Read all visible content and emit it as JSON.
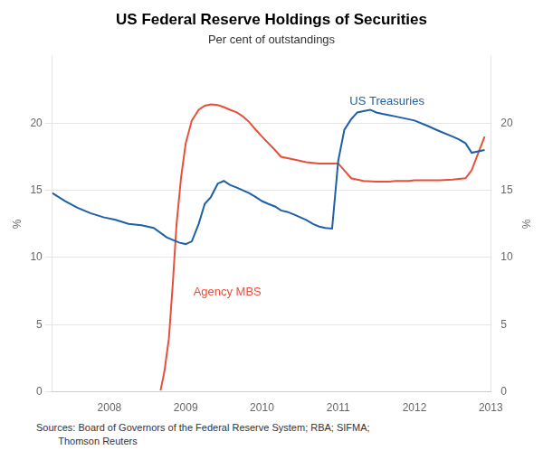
{
  "chart_data": {
    "type": "line",
    "title": "US Federal Reserve Holdings of Securities",
    "subtitle": "Per cent of outstandings",
    "ylabel": "%",
    "y2label": "%",
    "source": "Sources: Board of Governors of the Federal Reserve System; RBA; SIFMA;\n        Thomson Reuters",
    "xlim": [
      2007.25,
      2013.0
    ],
    "xticks": [
      2008,
      2009,
      2010,
      2011,
      2012,
      2013
    ],
    "ylim": [
      0,
      25
    ],
    "yticks": [
      0,
      5,
      10,
      15,
      20
    ],
    "y2lim": [
      0,
      25
    ],
    "y2ticks": [
      0,
      5,
      10,
      15,
      20
    ],
    "grid": "y",
    "series": [
      {
        "name": "US Treasuries",
        "color": "#1f5fa6",
        "x": [
          2007.25,
          2007.42,
          2007.58,
          2007.75,
          2007.92,
          2008.08,
          2008.25,
          2008.42,
          2008.58,
          2008.75,
          2008.92,
          2009.0,
          2009.08,
          2009.17,
          2009.25,
          2009.33,
          2009.42,
          2009.5,
          2009.58,
          2009.67,
          2009.75,
          2009.83,
          2009.92,
          2010.0,
          2010.08,
          2010.17,
          2010.25,
          2010.33,
          2010.42,
          2010.5,
          2010.58,
          2010.67,
          2010.75,
          2010.83,
          2010.92,
          2011.0,
          2011.08,
          2011.17,
          2011.25,
          2011.33,
          2011.42,
          2011.5,
          2011.58,
          2011.67,
          2011.75,
          2011.92,
          2012.0,
          2012.17,
          2012.33,
          2012.5,
          2012.58,
          2012.67,
          2012.75,
          2012.92
        ],
        "values": [
          14.8,
          14.2,
          13.7,
          13.3,
          13.0,
          12.8,
          12.5,
          12.4,
          12.2,
          11.5,
          11.1,
          11.0,
          11.2,
          12.5,
          14.0,
          14.5,
          15.5,
          15.7,
          15.4,
          15.2,
          15.0,
          14.8,
          14.5,
          14.2,
          14.0,
          13.8,
          13.5,
          13.4,
          13.2,
          13.0,
          12.8,
          12.5,
          12.3,
          12.2,
          12.15,
          17.2,
          19.5,
          20.3,
          20.8,
          20.9,
          21.0,
          20.8,
          20.7,
          20.6,
          20.5,
          20.3,
          20.2,
          19.8,
          19.4,
          19.0,
          18.8,
          18.5,
          17.8,
          18.0
        ]
      },
      {
        "name": "Agency MBS",
        "color": "#e8503a",
        "x": [
          2008.67,
          2008.72,
          2008.78,
          2008.83,
          2008.88,
          2008.94,
          2009.0,
          2009.08,
          2009.17,
          2009.25,
          2009.33,
          2009.42,
          2009.5,
          2009.58,
          2009.67,
          2009.75,
          2009.83,
          2009.92,
          2010.0,
          2010.17,
          2010.25,
          2010.42,
          2010.58,
          2010.75,
          2010.92,
          2011.0,
          2011.17,
          2011.33,
          2011.5,
          2011.67,
          2011.75,
          2011.92,
          2012.0,
          2012.17,
          2012.33,
          2012.5,
          2012.58,
          2012.67,
          2012.75,
          2012.92
        ],
        "values": [
          0.1,
          1.5,
          4.0,
          8.0,
          12.5,
          16.0,
          18.5,
          20.2,
          21.0,
          21.3,
          21.4,
          21.35,
          21.2,
          21.0,
          20.8,
          20.5,
          20.1,
          19.5,
          19.0,
          18.0,
          17.5,
          17.3,
          17.1,
          17.0,
          17.0,
          17.0,
          15.9,
          15.7,
          15.65,
          15.65,
          15.7,
          15.7,
          15.75,
          15.75,
          15.75,
          15.8,
          15.85,
          15.9,
          16.5,
          19.0
        ]
      }
    ],
    "annotations": [
      {
        "text": "US Treasuries",
        "x": 2011.15,
        "y": 21.2,
        "color": "#1f5fa6"
      },
      {
        "text": "Agency MBS",
        "x": 2009.1,
        "y": 7.0,
        "color": "#e8503a"
      }
    ]
  }
}
